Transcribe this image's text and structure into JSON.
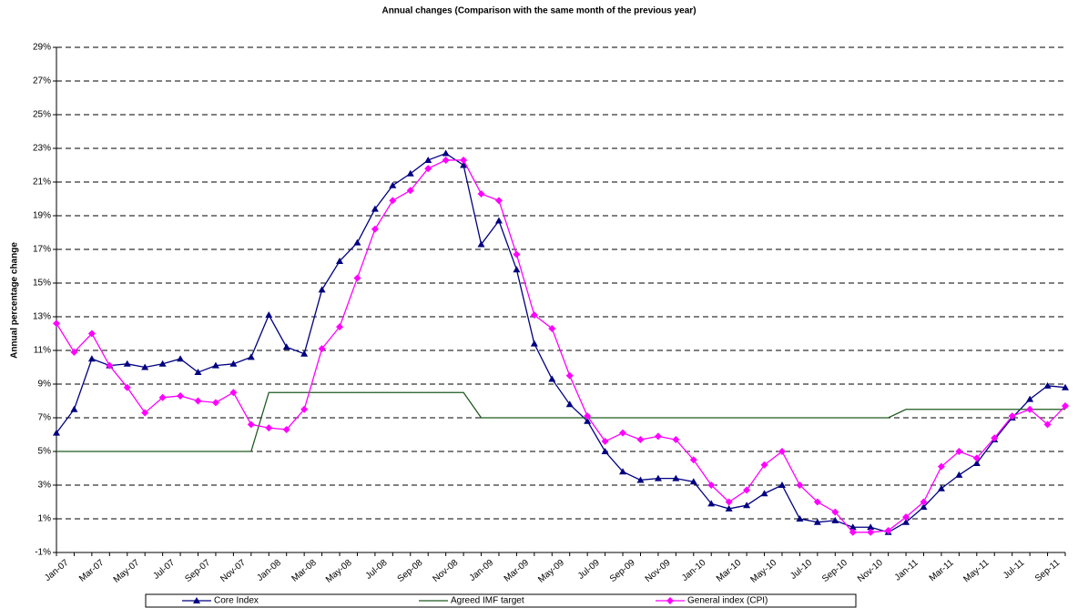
{
  "chart_data": {
    "type": "line",
    "title": "Annual changes (Comparison with the same month of the previous year)",
    "y_label": "Annual percentage change",
    "categories": [
      "Jan-07",
      null,
      "Mar-07",
      null,
      "May-07",
      null,
      "Jul-07",
      null,
      "Sep-07",
      null,
      "Nov-07",
      null,
      "Jan-08",
      null,
      "Mar-08",
      null,
      "May-08",
      null,
      "Jul-08",
      null,
      "Sep-08",
      null,
      "Nov-08",
      null,
      "Jan-09",
      null,
      "Mar-09",
      null,
      "May-09",
      null,
      "Jul-09",
      null,
      "Sep-09",
      null,
      "Nov-09",
      null,
      "Jan-10",
      null,
      "Mar-10",
      null,
      "May-10",
      null,
      "Jul-10",
      null,
      "Sep-10",
      null,
      "Nov-10",
      null,
      "Jan-11",
      null,
      "Mar-11",
      null,
      "May-11",
      null,
      "Jul-11",
      null,
      "Sep-11",
      null
    ],
    "series": [
      {
        "name": "Core Index",
        "color": "#000080",
        "marker": "triangle",
        "values": [
          6.1,
          7.5,
          10.5,
          10.1,
          10.2,
          10.0,
          10.2,
          10.5,
          9.7,
          10.1,
          10.2,
          10.6,
          13.1,
          11.2,
          10.8,
          14.6,
          16.3,
          17.4,
          19.4,
          20.8,
          21.5,
          22.3,
          22.7,
          22.0,
          17.3,
          18.7,
          15.8,
          11.4,
          9.3,
          7.8,
          6.8,
          5.0,
          3.8,
          3.3,
          3.4,
          3.4,
          3.2,
          1.9,
          1.6,
          1.8,
          2.5,
          3.0,
          1.0,
          0.8,
          0.9,
          0.5,
          0.5,
          0.2,
          0.8,
          1.7,
          2.8,
          3.6,
          4.3,
          5.7,
          7.0,
          8.1,
          8.9,
          8.8
        ]
      },
      {
        "name": "Agreed IMF target",
        "color": "#1f5a1f",
        "marker": "none",
        "values": [
          5,
          5,
          5,
          5,
          5,
          5,
          5,
          5,
          5,
          5,
          5,
          5,
          8.5,
          8.5,
          8.5,
          8.5,
          8.5,
          8.5,
          8.5,
          8.5,
          8.5,
          8.5,
          8.5,
          8.5,
          7,
          7,
          7,
          7,
          7,
          7,
          7,
          7,
          7,
          7,
          7,
          7,
          7,
          7,
          7,
          7,
          7,
          7,
          7,
          7,
          7,
          7,
          7,
          7,
          7.5,
          7.5,
          7.5,
          7.5,
          7.5,
          7.5,
          7.5,
          7.5,
          7.5,
          7.5
        ]
      },
      {
        "name": "General index (CPI)",
        "color": "#ff00ff",
        "marker": "diamond",
        "values": [
          12.6,
          10.9,
          12.0,
          10.1,
          8.8,
          7.3,
          8.2,
          8.3,
          8.0,
          7.9,
          8.5,
          6.6,
          6.4,
          6.3,
          7.5,
          11.1,
          12.4,
          15.3,
          18.2,
          19.9,
          20.5,
          21.8,
          22.3,
          22.3,
          20.3,
          19.9,
          16.7,
          13.1,
          12.3,
          9.5,
          7.1,
          5.6,
          6.1,
          5.7,
          5.9,
          5.7,
          4.5,
          3.0,
          2.0,
          2.7,
          4.2,
          5.0,
          3.0,
          2.0,
          1.4,
          0.2,
          0.2,
          0.3,
          1.1,
          2.0,
          4.1,
          5.0,
          4.6,
          5.8,
          7.1,
          7.5,
          6.6,
          7.7
        ]
      }
    ],
    "ylim": [
      -1,
      29
    ],
    "yticks": [
      {
        "value": -1,
        "label": "-1%"
      },
      {
        "value": 1,
        "label": "1%"
      },
      {
        "value": 3,
        "label": "3%"
      },
      {
        "value": 5,
        "label": "5%"
      },
      {
        "value": 7,
        "label": "7%"
      },
      {
        "value": 9,
        "label": "9%"
      },
      {
        "value": 11,
        "label": "11%"
      },
      {
        "value": 13,
        "label": "13%"
      },
      {
        "value": 15,
        "label": "15%"
      },
      {
        "value": 17,
        "label": "17%"
      },
      {
        "value": 19,
        "label": "19%"
      },
      {
        "value": 21,
        "label": "21%"
      },
      {
        "value": 23,
        "label": "23%"
      },
      {
        "value": 25,
        "label": "25%"
      },
      {
        "value": 27,
        "label": "27%"
      },
      {
        "value": 29,
        "label": "29%"
      }
    ],
    "grid": true,
    "legend": "bottom"
  }
}
